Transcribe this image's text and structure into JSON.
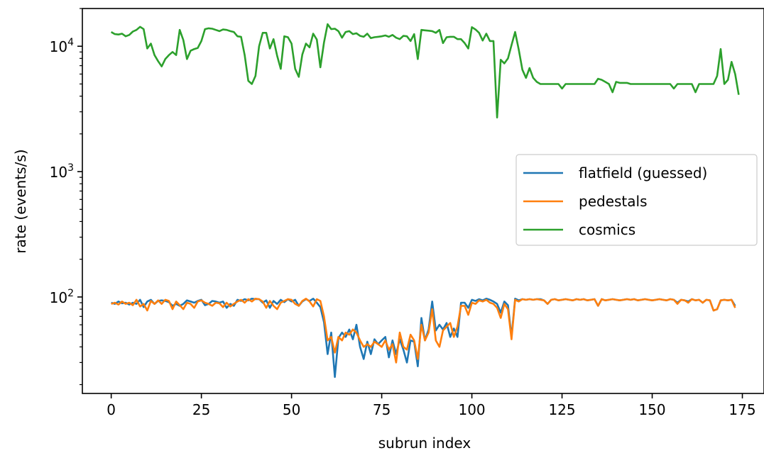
{
  "chart_data": {
    "type": "line",
    "xlabel": "subrun index",
    "ylabel": "rate (events/s)",
    "xlim": [
      -8,
      181
    ],
    "ylim": [
      17,
      20000
    ],
    "yscale": "log",
    "x_ticks": [
      0,
      25,
      50,
      75,
      100,
      125,
      150,
      175
    ],
    "y_ticks": [
      {
        "value": 100,
        "base": "10",
        "exp": "2"
      },
      {
        "value": 1000,
        "base": "10",
        "exp": "3"
      },
      {
        "value": 10000,
        "base": "10",
        "exp": "4"
      }
    ],
    "grid": false,
    "legend_position": "center-right",
    "series": [
      {
        "name": "flatfield (guessed)",
        "color": "#1f77b4",
        "values": [
          90,
          88,
          92,
          89,
          90,
          87,
          90,
          88,
          95,
          83,
          92,
          95,
          88,
          93,
          94,
          93,
          91,
          85,
          88,
          85,
          88,
          94,
          92,
          90,
          93,
          95,
          86,
          88,
          93,
          92,
          90,
          92,
          82,
          88,
          85,
          95,
          93,
          96,
          94,
          97,
          96,
          96,
          90,
          94,
          82,
          93,
          88,
          95,
          91,
          96,
          92,
          95,
          85,
          92,
          96,
          93,
          97,
          90,
          83,
          63,
          35,
          52,
          23,
          47,
          52,
          48,
          55,
          46,
          60,
          40,
          32,
          44,
          35,
          46,
          42,
          45,
          48,
          33,
          45,
          35,
          46,
          38,
          30,
          45,
          44,
          28,
          68,
          45,
          55,
          92,
          54,
          60,
          55,
          62,
          48,
          56,
          48,
          90,
          90,
          82,
          95,
          93,
          96,
          94,
          97,
          95,
          92,
          88,
          75,
          92,
          86,
          48,
          97,
          94,
          96,
          95,
          96,
          95,
          96,
          96,
          94,
          88,
          95,
          96,
          94,
          95,
          96,
          95,
          94,
          96,
          95,
          96,
          94,
          95,
          96,
          85,
          96,
          94,
          95,
          96,
          95,
          94,
          95,
          96,
          95,
          96,
          94,
          95,
          96,
          95,
          94,
          95,
          96,
          95,
          94,
          96,
          95,
          90,
          95,
          94,
          92,
          96,
          94,
          95,
          90,
          95,
          94,
          78,
          80,
          94,
          95,
          94,
          95,
          85
        ],
        "color_name": "blue"
      },
      {
        "name": "pedestals",
        "color": "#ff7f0e",
        "values": [
          88,
          90,
          87,
          92,
          88,
          90,
          86,
          95,
          84,
          88,
          78,
          93,
          88,
          94,
          88,
          95,
          93,
          80,
          92,
          86,
          80,
          90,
          88,
          82,
          92,
          94,
          90,
          88,
          85,
          90,
          89,
          83,
          90,
          84,
          88,
          92,
          95,
          90,
          96,
          92,
          97,
          96,
          92,
          82,
          93,
          85,
          80,
          90,
          93,
          96,
          95,
          88,
          85,
          93,
          97,
          92,
          84,
          96,
          93,
          70,
          45,
          48,
          36,
          48,
          45,
          52,
          50,
          55,
          52,
          45,
          40,
          42,
          40,
          44,
          42,
          40,
          45,
          38,
          42,
          30,
          52,
          40,
          38,
          50,
          45,
          32,
          60,
          45,
          52,
          80,
          45,
          40,
          54,
          58,
          62,
          48,
          58,
          85,
          85,
          72,
          90,
          88,
          94,
          92,
          95,
          90,
          88,
          82,
          68,
          88,
          80,
          46,
          95,
          92,
          96,
          95,
          96,
          95,
          96,
          95,
          94,
          88,
          95,
          96,
          94,
          95,
          96,
          95,
          94,
          96,
          95,
          96,
          94,
          95,
          96,
          85,
          96,
          94,
          95,
          96,
          95,
          94,
          95,
          96,
          95,
          96,
          94,
          95,
          96,
          95,
          94,
          95,
          96,
          95,
          94,
          96,
          95,
          88,
          95,
          94,
          90,
          96,
          94,
          95,
          90,
          95,
          94,
          78,
          80,
          94,
          95,
          94,
          95,
          82
        ],
        "color_name": "orange"
      },
      {
        "name": "cosmics",
        "color": "#2ca02c",
        "values": [
          13000,
          12500,
          12400,
          12600,
          12000,
          12300,
          13100,
          13500,
          14300,
          13700,
          9600,
          10500,
          8500,
          7600,
          6900,
          7900,
          8500,
          9000,
          8500,
          13500,
          11200,
          7900,
          9200,
          9500,
          9700,
          11000,
          13700,
          13900,
          13800,
          13500,
          13200,
          13600,
          13500,
          13200,
          13000,
          12000,
          11900,
          8500,
          5300,
          5000,
          5800,
          10000,
          12800,
          12800,
          9600,
          11400,
          8400,
          6600,
          12000,
          11800,
          10500,
          6600,
          5700,
          8600,
          10500,
          9800,
          12600,
          11300,
          6800,
          10700,
          15000,
          13700,
          13800,
          13200,
          11700,
          13000,
          13200,
          12500,
          12700,
          12100,
          11900,
          12600,
          11600,
          11800,
          11900,
          12000,
          12200,
          11900,
          12300,
          11700,
          11400,
          12100,
          12000,
          11000,
          12500,
          7900,
          13500,
          13400,
          13300,
          13200,
          12800,
          13500,
          10600,
          11800,
          11900,
          11900,
          11400,
          11400,
          10600,
          9600,
          14200,
          13600,
          12800,
          11100,
          12600,
          11000,
          11000,
          2700,
          7800,
          7300,
          8000,
          10200,
          13000,
          9400,
          6500,
          5600,
          6700,
          5600,
          5200,
          5000,
          5000,
          5000,
          5000,
          5000,
          5000,
          4600,
          5000,
          5000,
          5000,
          5000,
          5000,
          5000,
          5000,
          5000,
          5000,
          5500,
          5400,
          5200,
          5000,
          4300,
          5200,
          5100,
          5100,
          5100,
          5000,
          5000,
          5000,
          5000,
          5000,
          5000,
          5000,
          5000,
          5000,
          5000,
          5000,
          5000,
          4600,
          5000,
          5000,
          5000,
          5000,
          5000,
          4300,
          5000,
          5000,
          5000,
          5000,
          5000,
          5800,
          9500,
          5000,
          5400,
          7500,
          6000,
          4100
        ]
      }
    ]
  }
}
